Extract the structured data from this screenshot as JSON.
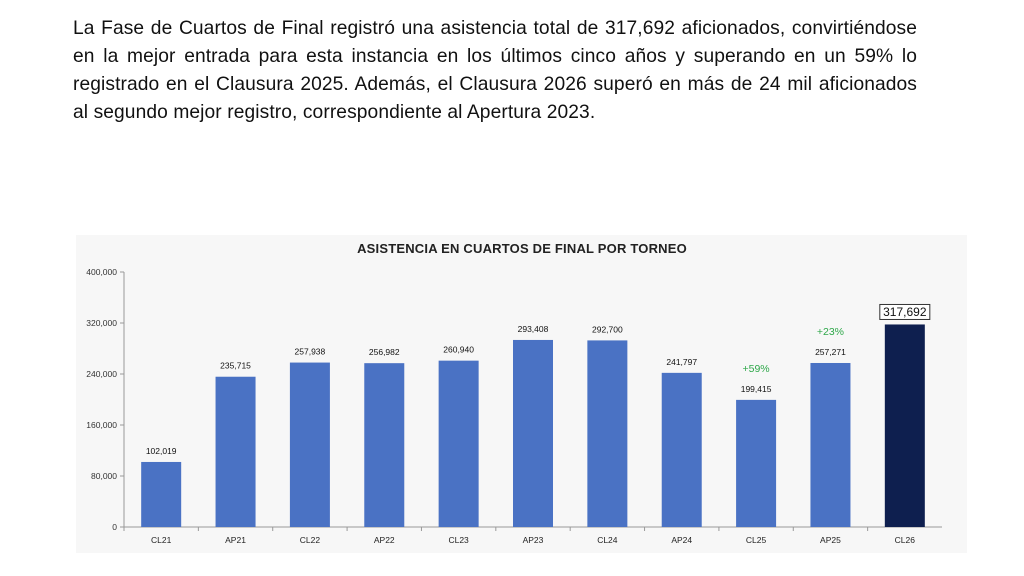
{
  "paragraph": "La Fase de Cuartos de Final registró una asistencia total de 317,692 aficionados, convirtiéndose en la mejor entrada para esta instancia en los últimos cinco años y superando en un 59% lo registrado en el Clausura 2025. Además, el Clausura 2026 superó en más de 24 mil aficionados al segundo mejor registro, correspondiente al Apertura 2023.",
  "chart_data": {
    "type": "bar",
    "title": "ASISTENCIA EN CUARTOS DE FINAL POR TORNEO",
    "categories": [
      "CL21",
      "AP21",
      "CL22",
      "AP22",
      "CL23",
      "AP23",
      "CL24",
      "AP24",
      "CL25",
      "AP25",
      "CL26"
    ],
    "values": [
      102019,
      235715,
      257938,
      256982,
      260940,
      293408,
      292700,
      241797,
      199415,
      257271,
      317692
    ],
    "value_labels": [
      "102,019",
      "235,715",
      "257,938",
      "256,982",
      "260,940",
      "293,408",
      "292,700",
      "241,797",
      "199,415",
      "257,271",
      "317,692"
    ],
    "ylim": [
      0,
      400000
    ],
    "yticks": [
      0,
      80000,
      160000,
      240000,
      320000,
      400000
    ],
    "ytick_labels": [
      "0",
      "80,000",
      "160,000",
      "240,000",
      "320,000",
      "400,000"
    ],
    "annotations": [
      {
        "category": "CL25",
        "text": "+59%"
      },
      {
        "category": "AP25",
        "text": "+23%"
      }
    ],
    "highlight": "CL26",
    "colors": {
      "bar": "#4a72c4",
      "highlight": "#0e1f4f",
      "annotation": "#2fa84a"
    },
    "grid": false
  }
}
